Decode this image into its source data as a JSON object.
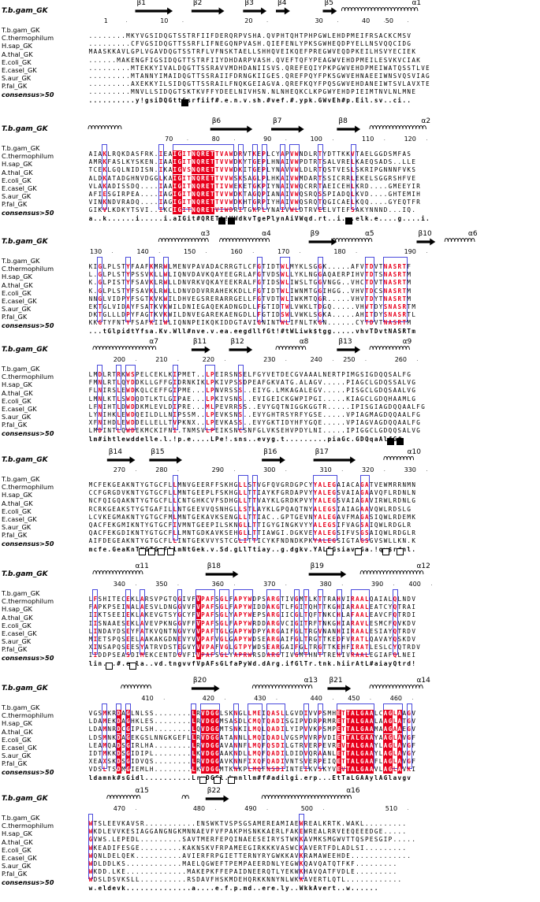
{
  "reference_label": "T.b.gam_GK",
  "names": [
    "T.b.gam_GK",
    "C.thermophilum",
    "H.sap_GK",
    "A.thal_GK",
    "E.coli_GK",
    "E.casel_GK",
    "S.aur_GK",
    "P.fal_GK"
  ],
  "consensus_label": "consensus>50",
  "blocks": [
    {
      "ss": [
        {
          "label": "β1",
          "type": "arrow",
          "c0": 10,
          "c1": 18
        },
        {
          "label": "β2",
          "type": "arrow",
          "c0": 22,
          "c1": 29
        },
        {
          "label": "β3",
          "type": "arrow",
          "c0": 33,
          "c1": 38
        },
        {
          "label": "β4",
          "type": "arrow",
          "c0": 40,
          "c1": 43
        },
        {
          "label": "β5",
          "type": "arrow",
          "c0": 50,
          "c1": 53
        },
        {
          "label": "α1",
          "type": "helix",
          "c0": 54,
          "c1": 70
        }
      ],
      "ticks": [
        {
          "n": "1",
          "c": 4
        },
        {
          "n": "10",
          "c": 16
        },
        {
          "n": "20",
          "c": 34
        },
        {
          "n": "30",
          "c": 49
        },
        {
          "n": "40",
          "c": 59
        },
        {
          "n": "50",
          "c": 64
        }
      ],
      "seqs": [
        "........MKYVGSIDQGTSSTRFIIFDERQRPVSHA.QVPHTQHTPHPGWLEHDPMEIFRSACKCMSV",
        ".........CFVGSIDQGTTSSRFLIFNEGQNPVASH.QIEFENLYPKSGWHEQDPYELLNSVQQCIDG",
        "MAASKKAVLGPLVGAVDQGTSSTRFLVFNSKTAELLSHHQVEIKQEFPREGWVEQDPKEILHSVYECIEK",
        "......MAKENGFIGSIDQGTTSTRFIIYDHDARPVASH.QVEFTQFYPEAGWVEHDPMEILESVKVCIAK",
        ".........MTEKKYIVALDQGTTSSRAVVMDHDANIISVS.QREFEQIYPKPGWVEHDPMEIWATQSSTLVE",
        ".........MTANNYIMAIDQGTTSSRAIIFDRNGKIIGES.QREFPQYFPKSGWVEHNAEEIWNSVQSVIAG",
        ".........AXEKKYILSIDQGTTSSRAILFNQKGEIAGVA.QREFKQYFPQSGWVEHDANEIWTSVLAVXTE",
        ".........MNVLLSIDQGTSKTKVFFYDEELNIVHSN.NLNHEQKCLKPGWYEHDPIEIMTNVLNLMNE"
      ],
      "consensus": "..........y!gsiDQGttSsrfiif#.e.n.v.sh.#vef.#.ypk.GWvEh#p.Eil.sv..ci..",
      "marks": [
        {
          "c": 20,
          "t": "filled"
        }
      ]
    },
    {
      "ss": [
        {
          "label": "",
          "type": "helix",
          "c0": 0,
          "c1": 7
        },
        {
          "label": "β6",
          "type": "arrow",
          "c0": 26,
          "c1": 35
        },
        {
          "label": "β7",
          "type": "arrow",
          "c0": 39,
          "c1": 46
        },
        {
          "label": "β8",
          "type": "arrow",
          "c0": 53,
          "c1": 58
        },
        {
          "label": "α2",
          "type": "helix",
          "c0": 60,
          "c1": 72
        }
      ],
      "ticks": [
        {
          "n": "70",
          "c": 17
        },
        {
          "n": "80",
          "c": 27
        },
        {
          "n": "90",
          "c": 38
        },
        {
          "n": "100",
          "c": 48
        },
        {
          "n": "110",
          "c": 59
        },
        {
          "n": "120",
          "c": 68
        }
      ],
      "seqs": [
        "AIAKLRQKDASFRK.IEAIGITNQRETTVAWDRVTKEPLCYAPVWNDLRTYDTTKKVTAELGGDSMFAS",
        "AMRKFASLKYSKEN.IAAIGITNQRETTVVWDKYTGEPLHNAIVWPDTRTSALVRELKAEQSADS..LLE",
        "TCEKLGQLNIDISN.IKAIGVSNQRETTVVWDKITGEPLYNAVVWLDLRTQSTVESLSKRIPGNNNFVKS",
        "ALDKATADGHNVDGGLKAIGITNQRETTVVWSKSAGLPLHKAIVWMDARTSSICRRLEKELSGGRSHFVE",
        "VLAKADISSDQ....IAAIGITNQRETTIVWEKETGKPIYNAIVWQCRRTAEICEHLKRD....GMEEYIR",
        "AFIESGIRPEA....IAGIGITNQRETTVVWDKTAGQPIANAIVWQSRQSSPIADQLKVD....GHTEMIH",
        "VINKNDVRADQ....IAGIGITNQRETTVVWDKHTGRPIYHAIVWQSRQTQGICAELKQQ....GYEQTFR",
        "GIKVLKDKYTSVI..IKCIGITNQRETVIWDRITGKPLYNAIVWLDTRVEELVTEFSAKYNNND...IQ."
      ],
      "consensus": "a..k......i.....i.aIGit#QRETt!VWdkvTgePlynAiVWqd.rt..i...elk.e....g....i.",
      "marks": [
        {
          "c": 28,
          "t": "filled"
        },
        {
          "c": 30,
          "t": "filled"
        },
        {
          "c": 55,
          "t": "filled"
        }
      ]
    },
    {
      "ss": [
        {
          "label": "α3",
          "type": "helix",
          "c0": 15,
          "c1": 25
        },
        {
          "label": "α4",
          "type": "helix",
          "c0": 28,
          "c1": 38
        },
        {
          "label": "β9",
          "type": "arrow",
          "c0": 47,
          "c1": 53
        },
        {
          "label": "α5",
          "type": "helix",
          "c0": 52,
          "c1": 60
        },
        {
          "label": "β10",
          "type": "arrow",
          "c0": 70,
          "c1": 74
        },
        {
          "label": "α6",
          "type": "helix",
          "c0": 76,
          "c1": 82
        }
      ],
      "ticks": [
        {
          "n": "130",
          "c": 1
        },
        {
          "n": "140",
          "c": 11
        },
        {
          "n": "150",
          "c": 21
        },
        {
          "n": "160",
          "c": 31
        },
        {
          "n": "170",
          "c": 41
        },
        {
          "n": "180",
          "c": 53
        },
        {
          "n": "190",
          "c": 68
        }
      ],
      "seqs": [
        "KIGLPLSTYFAAFKMRWLMENVPAVADACRRGTLCFGTIDTWLMYKLSGGK.....AFVTDVTNASRTF",
        "L.GLPLSTYPSSVKLLWLIQNVDAVKQAYEEGRLAFGTVDSWLLYKLNGGAQAERPIHVTDTSNASRTM",
        "K.GLPISTYFSAVKLRWLLDNVRKVQKAYEEKRALFGTIDSWLIWSLTGGVNGG..VHCTDVTNASRTM",
        "K.GLPLSTYFSAVKLRWLLDNVDDVRRAHEKKDLLFGTIDTWLIWNMTGGIHGG..VHVTDCSNASRTM",
        "NNGLVIDPYFSGTKVKWILDHVEGSRERARRGELLFGTVDTWLIWKMTQGR.....VHVTDYTNASRTM",
        "EKTGLVIDAYFSATKVKWILDNIEGAQEKADNGDLLFGTIDTWLVWKLTDGQ.....VHVTDYSNASRTM",
        "DKTGLLLDPYFAGTKVKWILDNVEGAREKAENGDLLFGTIDSWLVWKLSGKA.....AHITDYSNASRTL",
        "KKGTYFNTYFSAFKIIWLIQNNPEIKQKIDDGTAVIGNINTWLIFNLTKGN......CYTDVTNASRTM"
      ],
      "consensus": "...tGlpidtYfsa.Kv.Wll#nve.v.ea.eegdllfGt!#tWLiwk$tgg.....vhvTDvtNASRTm",
      "marks": []
    },
    {
      "ss": [
        {
          "label": "α7",
          "type": "helix",
          "c0": 1,
          "c1": 14
        },
        {
          "label": "β11",
          "type": "arrow",
          "c0": 22,
          "c1": 26
        },
        {
          "label": "β12",
          "type": "arrow",
          "c0": 30,
          "c1": 35
        },
        {
          "label": "α8",
          "type": "helix",
          "c0": 40,
          "c1": 46
        },
        {
          "label": "β13",
          "type": "arrow",
          "c0": 53,
          "c1": 58
        },
        {
          "label": "α9",
          "type": "helix",
          "c0": 60,
          "c1": 68
        }
      ],
      "ticks": [
        {
          "n": "200",
          "c": 6
        },
        {
          "n": "210",
          "c": 15
        },
        {
          "n": "220",
          "c": 25
        },
        {
          "n": "230",
          "c": 38
        },
        {
          "n": "240",
          "c": 48
        },
        {
          "n": "250",
          "c": 55
        },
        {
          "n": "260",
          "c": 66
        }
      ],
      "seqs": [
        "LMDLRTRKWSPELCEKLKIPMET..LPEIRSNSELFGYVETDECGVAAALNERTPIMGSIGDQQSALFG",
        "FMNLRTLQYDDKLLGFFGIDRNKIKLPKIVPSSDPEAFGKVATG.ALAGV.....PIAGCLGDQSSALVG",
        "FLNIRSLEWDKQLCEFFGIPME...LPNVRSSS..EIYG.LMKAGALEGV.....PISGCLGDQSAALVG",
        "LMNLKTLSWDQDTLKTLGIPAE...LPKIVSNS..EVIGEICKGWPIPGI.....KIAGCLGDQHAAMLG",
        "LFNIHTLDWDDKMLEVLDIPRE...MLPEVRRSS..EVYGQTNIGGKGGTR.....IPISGIAGDQQAALFG",
        "LYNIHKLEWDQEILDLLNIPSSM..LPEVKSNS..EVYGHTRSYRFYGSE.....VPIAGMAGDQQAALFG",
        "XFNIHDLEWDDELLELLTVPKNX..LPEVKASS..EVYGKTIDYHFYGQE.....VPIAGVAGDQQAALFG",
        "LMDINTLQWDEKMCKIFNI.TNMSVLPEIKSNCSNFGLVKSEHVPDYLNI.....IPIGGCLGDQQSALVG"
      ],
      "consensus": "lm#ihtlewddelle.l.!p.e....LPe!.sns..evyg.t.........piaGc.GDQqaAlfG#",
      "marks": [
        {
          "c": 64,
          "t": "filled"
        },
        {
          "c": 66,
          "t": "filled"
        }
      ]
    },
    {
      "ss": [
        {
          "label": "β14",
          "type": "arrow",
          "c0": 4,
          "c1": 10
        },
        {
          "label": "β15",
          "type": "arrow",
          "c0": 13,
          "c1": 20
        },
        {
          "label": "β16",
          "type": "arrow",
          "c0": 37,
          "c1": 42
        },
        {
          "label": "β17",
          "type": "arrow",
          "c0": 48,
          "c1": 57
        },
        {
          "label": "α10",
          "type": "helix",
          "c0": 63,
          "c1": 69
        }
      ],
      "ticks": [
        {
          "n": "270",
          "c": 6
        },
        {
          "n": "280",
          "c": 15
        },
        {
          "n": "290",
          "c": 27
        },
        {
          "n": "300",
          "c": 38
        },
        {
          "n": "310",
          "c": 50
        },
        {
          "n": "320",
          "c": 59
        },
        {
          "n": "330",
          "c": 68
        }
      ],
      "seqs": [
        "MCFEKGEAKNTYGTGCFLLMNVGEERFFSKHGLLSTVGFQVGRDGPCYYALEGAIACAGATVEWMRRNMN",
        "CCFGRGDVKNTYGTGCFLLMNTGEEPLFSKHGLLTTIAYKFGRDAPVYYALEGSVAIAGAAVQFLRDNLN",
        "NCFQIGQAKNTYGTGCFLLCNTGHKCVFSDHGLLTTVAYKLGRDKPVYYALEGSVAIAGAVIRWLRDNLG",
        "RCRKGEAKSTYGTGAFILLNTGEEVVQSNHGLLSTLAYKLGPQAQTNYALEGSIAIAGAAVQWLRDSLG",
        "LCVKEGMAKNTYGTGCFMLMNTGEKAVKSENGLLTTIAC..GPTGEVNYALEGAVFMAGASIQWLRDEMK",
        "QACFEKGMIKNTYGTGCFIVMNTGEEPILSKNGLLTTIGYGINGKVYYALEGSIFVAGSAIQWLRDGLR",
        "QACFEKGDIKNTYGTGCFLLMNTGDKAVKSEHGLLTTIAWGI.DGKVEYALEGSIFVSGSAIQWLRDGLR",
        "AIFDEGEAKNTYGTGCFLLINTGEKVVYSTCGLITTICYKFNDNDKPKYALEGSIGTAGSGVSWLLKN.K"
      ],
      "consensus": "mcfe.GeaKnTYGTGcFllmNtGek.v.Sd.gLlTtiay..g.dgkv.YALEGsiavaGa.!qw$rdnl.",
      "marks": [
        {
          "c": 11,
          "t": "open"
        },
        {
          "c": 13,
          "t": "open"
        },
        {
          "c": 15,
          "t": "open"
        },
        {
          "c": 17,
          "t": "open"
        },
        {
          "c": 51,
          "t": "open"
        },
        {
          "c": 57,
          "t": "open"
        },
        {
          "c": 63,
          "t": "open"
        },
        {
          "c": 66,
          "t": "open"
        }
      ]
    },
    {
      "ss": [
        {
          "label": "α11",
          "type": "helix",
          "c0": 1,
          "c1": 11
        },
        {
          "label": "β18",
          "type": "arrow",
          "c0": 25,
          "c1": 32
        },
        {
          "label": "β19",
          "type": "arrow",
          "c0": 47,
          "c1": 55
        },
        {
          "label": "α12",
          "type": "helix",
          "c0": 58,
          "c1": 71
        }
      ],
      "ticks": [
        {
          "n": "340",
          "c": 6
        },
        {
          "n": "350",
          "c": 15
        },
        {
          "n": "360",
          "c": 27
        },
        {
          "n": "370",
          "c": 38
        },
        {
          "n": "380",
          "c": 50
        },
        {
          "n": "390",
          "c": 61
        },
        {
          "n": "400",
          "c": 69
        }
      ],
      "seqs": [
        "LFSHITECEKLARSVPGTQGIVFVPAFSGLFAPYWDPSARGTIVGMTLKTTRAHVIRAALQAIALQLNDV",
        "FAPKPSEINALAESVLDNGGVVFVPAFSGLFAPYWIDDAKGTLFGITQHTTKGHIARAALEATCYQTRAI",
        "IIKTSEEIEKLAKEVGTSYGCYFVPAFSGLYAPYWEPSARGIICGLTQFTNKCHLAFAALEAVCFQTRDI",
        "IISNAAESEKLAVEVPKNGGVFFVPAFSGLFAPYWRDDARGVCIGITRFTNKGHIARAVLESMCFQVKDV",
        "LINDAYDSEYFATKVQNTNGVYVVPAFTGLGAPYWDPYARGAIFGLTRGVNANHIIRAALESIAYQTRDV",
        "MIETSPQSEELAAKAKGDNEVYVVPAFVGLGAPYWDSEARGAIFGLTRGTTKEDFVRATLQAVAYQSKDV",
        "XINSAPQSEESYATRVDSTEGVYVVPAFVGLGTPYWDSEARGAIFGLTRGTTKEHFIRATLESLCYQTRDV",
        "IIDDPSEASDIMEKCENTDGVFIVPAFSGLYAPRWRSDARGTIVGMTHNTTREHIVRAALEGIAFQLNEI"
      ],
      "consensus": "lin...#.e.la..vd.tngvvfVpAFsGLfaPyWd.dArg.ifGlTr.tnk.hiirAtL#aiayQtrd!",
      "marks": [
        {
          "c": 4,
          "t": "open"
        },
        {
          "c": 9,
          "t": "open"
        }
      ]
    },
    {
      "ss": [
        {
          "label": "",
          "type": "helix",
          "c0": 7,
          "c1": 13
        },
        {
          "label": "β20",
          "type": "arrow",
          "c0": 22,
          "c1": 28
        },
        {
          "label": "α13",
          "type": "helix",
          "c0": 35,
          "c1": 47
        },
        {
          "label": "β21",
          "type": "arrow",
          "c0": 51,
          "c1": 56
        },
        {
          "label": "α14",
          "type": "helix",
          "c0": 60,
          "c1": 71
        }
      ],
      "ticks": [
        {
          "n": "410",
          "c": 12
        },
        {
          "n": "420",
          "c": 25
        },
        {
          "n": "430",
          "c": 36
        },
        {
          "n": "440",
          "c": 48
        },
        {
          "n": "450",
          "c": 56
        },
        {
          "n": "460",
          "c": 65
        }
      ],
      "seqs": [
        "VGSMKRDAGLNLSS........LRVDGGLSKNGLLMEIQASLLGVDIVVPSMHETTALGAALCAGLAAGV",
        "LDAMEKDAGHKLES........LRVDGGMSASDLCMQTQADISGIPVDRPRMRETTALGAALAAGLATGV",
        "LDAMNRDCGIPLSH........LQVDGGMTSNKILMQLQADILYIPVVKPSMPETTALGAAMAAGAAEGV",
        "LDSMNKDAGEKGSLNNGKGEFLLRVDGGATANNLLMQIQADLVGSPVVRPVDIETTALGAAYAAGLAVGF",
        "LEAMQADSGIRLHA........LRVDGGAVANNFLMQFQSDILGTRVERPEVREVTALGAAYLAGLAVGF",
        "IDTMKKDSGIDIPL........LKVDGGAAKNDLLMQFQADILDIDVQRAANLETTALGAAYLAGLAVGY",
        "XEAXSKDSGIDVQS........LRVDGGAVKNNFIXQFQADIVNTSVERPEIQETTALGAAFLAGLAVGF",
        "VDSLTSDMGIEMLH........LKVDGGMTKNKPLMQFNSDIINTEIKVSKYVEVTALGAAVLAGLAVKI"
      ],
      "consensus": "ldamnk#sGidl..........LrvDGGl.knnllm#f#adilgi.erp...EtTaLGAAylAGlavgv",
      "marks": [
        {
          "c": 24,
          "t": "open"
        },
        {
          "c": 27,
          "t": "open"
        },
        {
          "c": 30,
          "t": "open"
        }
      ]
    },
    {
      "ss": [
        {
          "label": "α15",
          "type": "helix",
          "c0": 4,
          "c1": 11
        },
        {
          "label": "",
          "type": "helix",
          "c0": 20,
          "c1": 21
        },
        {
          "label": "β22",
          "type": "arrow",
          "c0": 25,
          "c1": 30
        },
        {
          "label": "α16",
          "type": "helix",
          "c0": 37,
          "c1": 56
        }
      ],
      "ticks": [
        {
          "n": "470",
          "c": 6
        },
        {
          "n": "480",
          "c": 23
        },
        {
          "n": "490",
          "c": 34
        },
        {
          "n": "500",
          "c": 46
        },
        {
          "n": "510",
          "c": 64
        }
      ],
      "seqs": [
        "WTSLEEVKAVSR...........ENSWKTVSPSGSAMEREAMIAEWREALKRTK.WAKL.........",
        "WKDLEVVKESIAGGANGNGKMNNAEVFVFPAKPHSNKKAERLFAKEWREALRRVEEQEEEDGE.....",
        "GVWS.LEPEDL.........SAVTMERFEPQINAEESEIRYSTWKKAVMKSMGWVTTQSPESGIP.....",
        "WKEADIFESGE.........KAKNSKVFRPAMEEGIRKKKVASWCKAVERTFDLADLSI.........",
        "WQNLDELQEK..........AVIERFRPGIETTERNYRYGWKKAVKRAMAWEEHDE.............",
        "WDLDDLKS............MAELQGWEFTPEMPAEERDNLYEGWKQAVQATQTFKF.........",
        "WKDD.LKE.............MAKEPKFFEPAIDNEERQTLYEKWKHAVQATFVDLE.........",
        "WDSLDSVKSLL..........RSDAVFHSKMDEHQRKKNNYNLWKKAVERTLQTL............"
      ],
      "consensus": "w.eldevk..............a....e.f.p.md..ere.ly..WkkAvert..w......",
      "marks": []
    }
  ]
}
